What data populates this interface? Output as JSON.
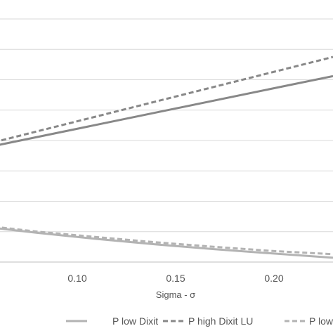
{
  "chart_data": {
    "type": "line",
    "xlabel": "Sigma - σ",
    "xticks": [
      "0.10",
      "0.15",
      "0.20"
    ],
    "xlim": [
      0.05,
      0.23
    ],
    "ylim": [
      0,
      8
    ],
    "grid": true,
    "legend_position": "bottom",
    "series": [
      {
        "name": "P high Dixit",
        "style": "solid",
        "color": "#888888",
        "x": [
          0.05,
          0.23
        ],
        "y": [
          3.72,
          6.12
        ]
      },
      {
        "name": "P high Dixit LU",
        "style": "dashed",
        "color": "#888888",
        "x": [
          0.05,
          0.23
        ],
        "y": [
          3.82,
          6.75
        ]
      },
      {
        "name": "P low Dixit",
        "style": "solid",
        "color": "#b3b3b3",
        "x": [
          0.05,
          0.08,
          0.11,
          0.14,
          0.17,
          0.2,
          0.23
        ],
        "y": [
          1.18,
          0.96,
          0.76,
          0.58,
          0.42,
          0.28,
          0.14
        ]
      },
      {
        "name": "P low Dixit LU",
        "style": "dashed",
        "color": "#b3b3b3",
        "x": [
          0.05,
          0.08,
          0.11,
          0.14,
          0.17,
          0.2,
          0.23
        ],
        "y": [
          1.22,
          1.0,
          0.82,
          0.65,
          0.5,
          0.36,
          0.26
        ]
      }
    ],
    "legend": [
      {
        "label": "P high Dixit",
        "style": "solid",
        "color": "#888888"
      },
      {
        "label": "P low Dixit",
        "style": "solid",
        "color": "#b3b3b3"
      },
      {
        "label": "P high Dixit LU",
        "style": "dashed",
        "color": "#888888"
      },
      {
        "label": "P low Dixit LU",
        "style": "dashed",
        "color": "#b3b3b3"
      }
    ]
  }
}
